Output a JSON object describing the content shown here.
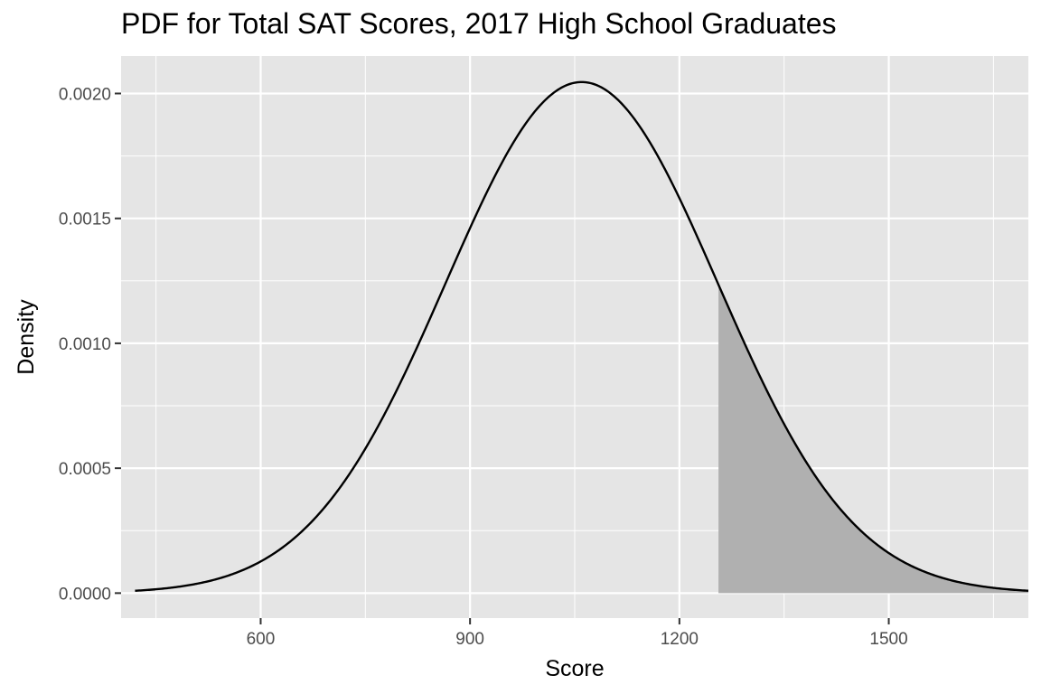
{
  "chart_data": {
    "type": "area",
    "title": "PDF for Total SAT Scores, 2017 High School Graduates",
    "xlabel": "Score",
    "ylabel": "Density",
    "xlim": [
      400,
      1700
    ],
    "ylim": [
      -0.0001,
      0.00215
    ],
    "x_ticks": [
      600,
      900,
      1200,
      1500
    ],
    "x_tick_labels": [
      "600",
      "900",
      "1200",
      "1500"
    ],
    "y_ticks": [
      0,
      0.0005,
      0.001,
      0.0015,
      0.002
    ],
    "y_tick_labels": [
      "0.0000",
      "0.0005",
      "0.0010",
      "0.0015",
      "0.0020"
    ],
    "grid": true,
    "legend": "none",
    "series": [
      {
        "kind": "normal_density_curve",
        "mean": 1060,
        "sd": 195,
        "x_range": [
          420,
          1700
        ],
        "color": "#000000"
      }
    ],
    "shaded_region": {
      "x_from": 1256,
      "x_to": 1700,
      "fill": "#b0b0b0"
    },
    "colors": {
      "panel_background": "#e5e5e5",
      "grid_major": "#ffffff",
      "curve": "#000000",
      "shade": "#b0b0b0",
      "tick_text": "#4d4d4d"
    }
  }
}
